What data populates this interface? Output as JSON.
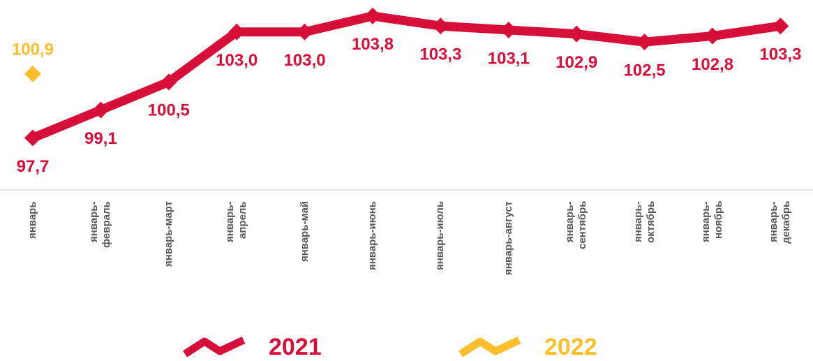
{
  "chart_data": {
    "type": "line",
    "categories": [
      "январь",
      "январь-\nфевраль",
      "январь-март",
      "январь-\nапрель",
      "январь-май",
      "январь-июнь",
      "январь-июль",
      "январь-август",
      "январь-\nсентябрь",
      "январь-\nоктябрь",
      "январь-\nноябрь",
      "январь-\nдекабрь"
    ],
    "series": [
      {
        "name": "2021",
        "color": "#d6103b",
        "values": [
          97.7,
          99.1,
          100.5,
          103.0,
          103.0,
          103.8,
          103.3,
          103.1,
          102.9,
          102.5,
          102.8,
          103.3
        ],
        "value_labels": [
          "97,7",
          "99,1",
          "100,5",
          "103,0",
          "103,0",
          "103,8",
          "103,3",
          "103,1",
          "102,9",
          "102,5",
          "102,8",
          "103,3"
        ]
      },
      {
        "name": "2022",
        "color": "#fbbf2d",
        "values": [
          100.9,
          null,
          null,
          null,
          null,
          null,
          null,
          null,
          null,
          null,
          null,
          null
        ],
        "value_labels": [
          "100,9",
          null,
          null,
          null,
          null,
          null,
          null,
          null,
          null,
          null,
          null,
          null
        ]
      }
    ],
    "ylim": [
      95.1,
      104.6
    ],
    "legend": "bottom"
  }
}
